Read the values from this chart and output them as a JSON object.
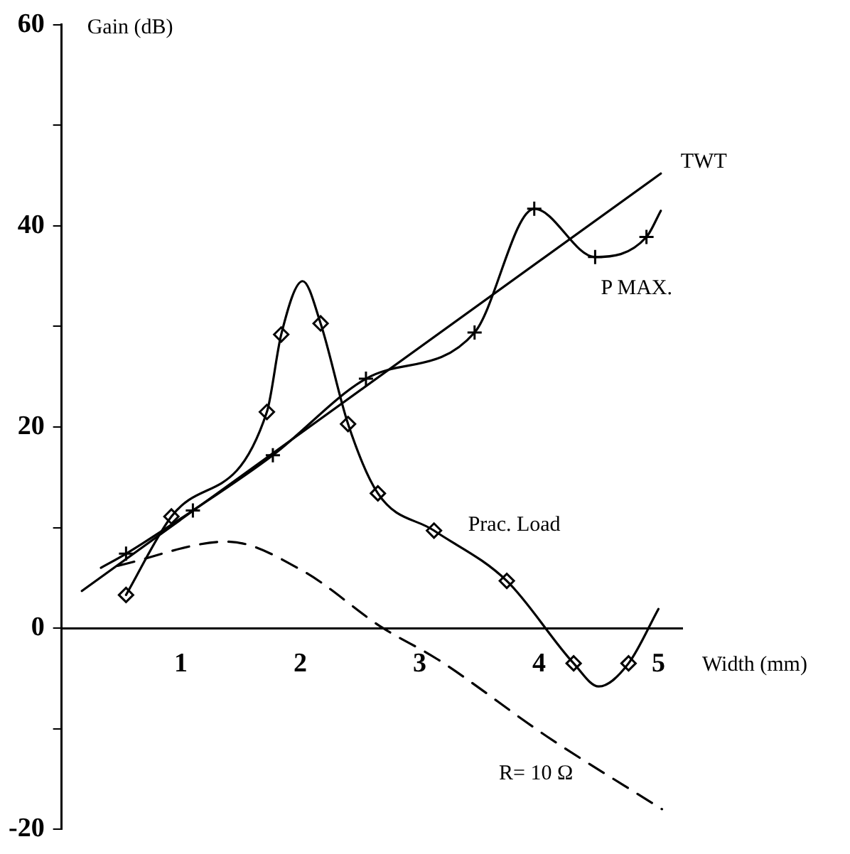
{
  "chart_data": {
    "type": "line",
    "xlabel": "Width (mm)",
    "ylabel": "Gain (dB)",
    "xlim": [
      0,
      5.2
    ],
    "xticks": [
      1,
      2,
      3,
      4,
      5
    ],
    "ylim": [
      -20,
      60
    ],
    "yticks": [
      -20,
      {
        "value": -10,
        "label": null
      },
      0,
      {
        "value": 10,
        "label": null
      },
      20,
      {
        "value": 30,
        "label": null
      },
      40,
      {
        "value": 50,
        "label": null
      },
      60
    ],
    "grid": false,
    "legend": false,
    "series": [
      {
        "name": "TWT",
        "color": "#000000",
        "marker": "none",
        "line_style": "solid",
        "x": [
          0.17,
          5.02
        ],
        "values": [
          3.7,
          45.2
        ]
      },
      {
        "name": "P MAX.",
        "color": "#000000",
        "marker": "none",
        "line_style": "solid",
        "x": [
          0.33,
          0.54,
          1.1,
          1.77,
          2.55,
          3.46,
          3.96,
          4.47,
          4.9,
          5.02
        ],
        "values": [
          6.0,
          7.4,
          11.7,
          17.2,
          24.8,
          29.4,
          41.7,
          36.9,
          38.9,
          41.5
        ]
      },
      {
        "type": "scatter",
        "color": "#000000",
        "marker": "cross",
        "x": [
          0.54,
          1.1,
          1.77,
          2.55,
          3.46,
          3.96,
          4.47,
          4.9
        ],
        "values": [
          7.4,
          11.7,
          17.2,
          24.8,
          29.4,
          41.7,
          36.9,
          38.9
        ]
      },
      {
        "name": "Prac. Load",
        "color": "#000000",
        "marker": "none",
        "line_style": "solid",
        "x": [
          0.54,
          0.92,
          1.72,
          1.84,
          2.02,
          2.17,
          2.4,
          2.65,
          3.12,
          3.73,
          4.29,
          4.5,
          4.75,
          5.0
        ],
        "values": [
          3.3,
          11.1,
          21.5,
          29.2,
          34.5,
          30.3,
          20.3,
          13.4,
          9.7,
          4.7,
          -3.5,
          -5.8,
          -3.5,
          1.9
        ]
      },
      {
        "type": "scatter",
        "color": "#000000",
        "marker": "diamond",
        "x": [
          0.54,
          0.92,
          1.72,
          1.84,
          2.17,
          2.4,
          2.65,
          3.12,
          3.73,
          4.29,
          4.75
        ],
        "values": [
          3.3,
          11.1,
          21.5,
          29.2,
          30.3,
          20.3,
          13.4,
          9.7,
          4.7,
          -3.5,
          -3.5
        ]
      },
      {
        "name": "R= 10 Ω",
        "color": "#000000",
        "marker": "none",
        "line_style": "dashed",
        "x": [
          0.47,
          1.39,
          2.02,
          2.68,
          3.15,
          4.07,
          5.03
        ],
        "values": [
          6.2,
          8.6,
          5.7,
          0.1,
          -3.1,
          -10.8,
          -18.0
        ]
      }
    ]
  }
}
